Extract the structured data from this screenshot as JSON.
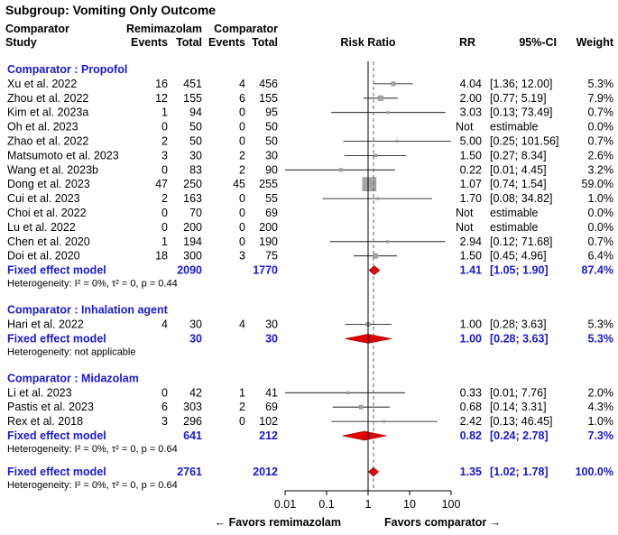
{
  "title": "Subgroup: Vomiting Only Outcome",
  "header": {
    "comparator_line1": "Comparator",
    "study": "Study",
    "remimazolam": "Remimazolam",
    "comparator": "Comparator",
    "events1": "Events",
    "total1": "Total",
    "events2": "Events",
    "total2": "Total",
    "risk_ratio": "Risk Ratio",
    "rr": "RR",
    "ci": "95%-CI",
    "weight": "Weight"
  },
  "colors": {
    "accent": "#1a1ad1",
    "diamond": "#e00000",
    "square": "#a6a6a6"
  },
  "chart_data": {
    "type": "forest",
    "x_scale": "log",
    "xlim": [
      0.01,
      100
    ],
    "ticks": [
      "0.01",
      "0.1",
      "1",
      "10",
      "100"
    ],
    "tick_values": [
      0.01,
      0.1,
      1,
      10,
      100
    ],
    "favors_left": "← Favors remimazolam",
    "favors_right": "Favors comparator →",
    "overall_rr_line": 1.35,
    "groups": [
      {
        "label": "Comparator : Propofol",
        "studies": [
          {
            "study": "Xu et al. 2022",
            "e1": "16",
            "n1": "451",
            "e2": "4",
            "n2": "456",
            "rr_text": "4.04",
            "ci_text": "[1.36; 12.00]",
            "weight_text": "5.3%",
            "rr": 4.04,
            "lo": 1.36,
            "hi": 12.0,
            "w": 5.3
          },
          {
            "study": "Zhou et al. 2022",
            "e1": "12",
            "n1": "155",
            "e2": "6",
            "n2": "155",
            "rr_text": "2.00",
            "ci_text": "[0.77; 5.19]",
            "weight_text": "7.9%",
            "rr": 2.0,
            "lo": 0.77,
            "hi": 5.19,
            "w": 7.9
          },
          {
            "study": "Kim et al. 2023a",
            "e1": "1",
            "n1": "94",
            "e2": "0",
            "n2": "95",
            "rr_text": "3.03",
            "ci_text": "[0.13; 73.49]",
            "weight_text": "0.7%",
            "rr": 3.03,
            "lo": 0.13,
            "hi": 73.49,
            "w": 0.7
          },
          {
            "study": "Oh et al. 2023",
            "e1": "0",
            "n1": "50",
            "e2": "0",
            "n2": "50",
            "rr_text": "Not",
            "ci_text": "estimable",
            "weight_text": "0.0%",
            "rr": null,
            "lo": null,
            "hi": null,
            "w": 0
          },
          {
            "study": "Zhao et al. 2022",
            "e1": "2",
            "n1": "50",
            "e2": "0",
            "n2": "50",
            "rr_text": "5.00",
            "ci_text": "[0.25; 101.56]",
            "weight_text": "0.7%",
            "rr": 5.0,
            "lo": 0.25,
            "hi": 101.56,
            "w": 0.7
          },
          {
            "study": "Matsumoto et al. 2023",
            "e1": "3",
            "n1": "30",
            "e2": "2",
            "n2": "30",
            "rr_text": "1.50",
            "ci_text": "[0.27; 8.34]",
            "weight_text": "2.6%",
            "rr": 1.5,
            "lo": 0.27,
            "hi": 8.34,
            "w": 2.6
          },
          {
            "study": "Wang et al. 2023b",
            "e1": "0",
            "n1": "83",
            "e2": "2",
            "n2": "90",
            "rr_text": "0.22",
            "ci_text": "[0.01; 4.45]",
            "weight_text": "3.2%",
            "rr": 0.22,
            "lo": 0.01,
            "hi": 4.45,
            "w": 3.2
          },
          {
            "study": "Dong et al. 2023",
            "e1": "47",
            "n1": "250",
            "e2": "45",
            "n2": "255",
            "rr_text": "1.07",
            "ci_text": "[0.74; 1.54]",
            "weight_text": "59.0%",
            "rr": 1.07,
            "lo": 0.74,
            "hi": 1.54,
            "w": 59.0
          },
          {
            "study": "Cui et al. 2023",
            "e1": "2",
            "n1": "163",
            "e2": "0",
            "n2": "55",
            "rr_text": "1.70",
            "ci_text": "[0.08; 34.82]",
            "weight_text": "1.0%",
            "rr": 1.7,
            "lo": 0.08,
            "hi": 34.82,
            "w": 1.0
          },
          {
            "study": "Choi et al. 2022",
            "e1": "0",
            "n1": "70",
            "e2": "0",
            "n2": "69",
            "rr_text": "Not",
            "ci_text": "estimable",
            "weight_text": "0.0%",
            "rr": null,
            "lo": null,
            "hi": null,
            "w": 0
          },
          {
            "study": "Lu et al. 2022",
            "e1": "0",
            "n1": "200",
            "e2": "0",
            "n2": "200",
            "rr_text": "Not",
            "ci_text": "estimable",
            "weight_text": "0.0%",
            "rr": null,
            "lo": null,
            "hi": null,
            "w": 0
          },
          {
            "study": "Chen et al. 2020",
            "e1": "1",
            "n1": "194",
            "e2": "0",
            "n2": "190",
            "rr_text": "2.94",
            "ci_text": "[0.12; 71.68]",
            "weight_text": "0.7%",
            "rr": 2.94,
            "lo": 0.12,
            "hi": 71.68,
            "w": 0.7
          },
          {
            "study": "Doi et al. 2020",
            "e1": "18",
            "n1": "300",
            "e2": "3",
            "n2": "75",
            "rr_text": "1.50",
            "ci_text": "[0.45; 4.96]",
            "weight_text": "6.4%",
            "rr": 1.5,
            "lo": 0.45,
            "hi": 4.96,
            "w": 6.4
          }
        ],
        "summary": {
          "label": "Fixed effect model",
          "n1": "2090",
          "n2": "1770",
          "rr_text": "1.41",
          "ci_text": "[1.05; 1.90]",
          "weight_text": "87.4%",
          "rr": 1.41,
          "lo": 1.05,
          "hi": 1.9
        },
        "heterogeneity": "Heterogeneity: I² = 0%, τ² = 0, p = 0.44"
      },
      {
        "label": "Comparator : Inhalation agent",
        "studies": [
          {
            "study": "Hari et al. 2022",
            "e1": "4",
            "n1": "30",
            "e2": "4",
            "n2": "30",
            "rr_text": "1.00",
            "ci_text": "[0.28; 3.63]",
            "weight_text": "5.3%",
            "rr": 1.0,
            "lo": 0.28,
            "hi": 3.63,
            "w": 5.3
          }
        ],
        "summary": {
          "label": "Fixed effect model",
          "n1": "30",
          "n2": "30",
          "rr_text": "1.00",
          "ci_text": "[0.28; 3.63]",
          "weight_text": "5.3%",
          "rr": 1.0,
          "lo": 0.28,
          "hi": 3.63
        },
        "heterogeneity": "Heterogeneity: not applicable"
      },
      {
        "label": "Comparator : Midazolam",
        "studies": [
          {
            "study": "Li et al. 2023",
            "e1": "0",
            "n1": "42",
            "e2": "1",
            "n2": "41",
            "rr_text": "0.33",
            "ci_text": "[0.01; 7.76]",
            "weight_text": "2.0%",
            "rr": 0.33,
            "lo": 0.01,
            "hi": 7.76,
            "w": 2.0
          },
          {
            "study": "Pastis et al. 2023",
            "e1": "6",
            "n1": "303",
            "e2": "2",
            "n2": "69",
            "rr_text": "0.68",
            "ci_text": "[0.14; 3.31]",
            "weight_text": "4.3%",
            "rr": 0.68,
            "lo": 0.14,
            "hi": 3.31,
            "w": 4.3
          },
          {
            "study": "Rex et al. 2018",
            "e1": "3",
            "n1": "296",
            "e2": "0",
            "n2": "102",
            "rr_text": "2.42",
            "ci_text": "[0.13; 46.45]",
            "weight_text": "1.0%",
            "rr": 2.42,
            "lo": 0.13,
            "hi": 46.45,
            "w": 1.0
          }
        ],
        "summary": {
          "label": "Fixed effect model",
          "n1": "641",
          "n2": "212",
          "rr_text": "0.82",
          "ci_text": "[0.24; 2.78]",
          "weight_text": "7.3%",
          "rr": 0.82,
          "lo": 0.24,
          "hi": 2.78
        },
        "heterogeneity": "Heterogeneity: I² = 0%, τ² = 0, p = 0.64"
      }
    ],
    "overall": {
      "label": "Fixed effect model",
      "n1": "2761",
      "n2": "2012",
      "rr_text": "1.35",
      "ci_text": "[1.02; 1.78]",
      "weight_text": "100.0%",
      "rr": 1.35,
      "lo": 1.02,
      "hi": 1.78
    },
    "overall_heterogeneity": "Heterogeneity: I² = 0%, τ² = 0, p = 0.64"
  }
}
